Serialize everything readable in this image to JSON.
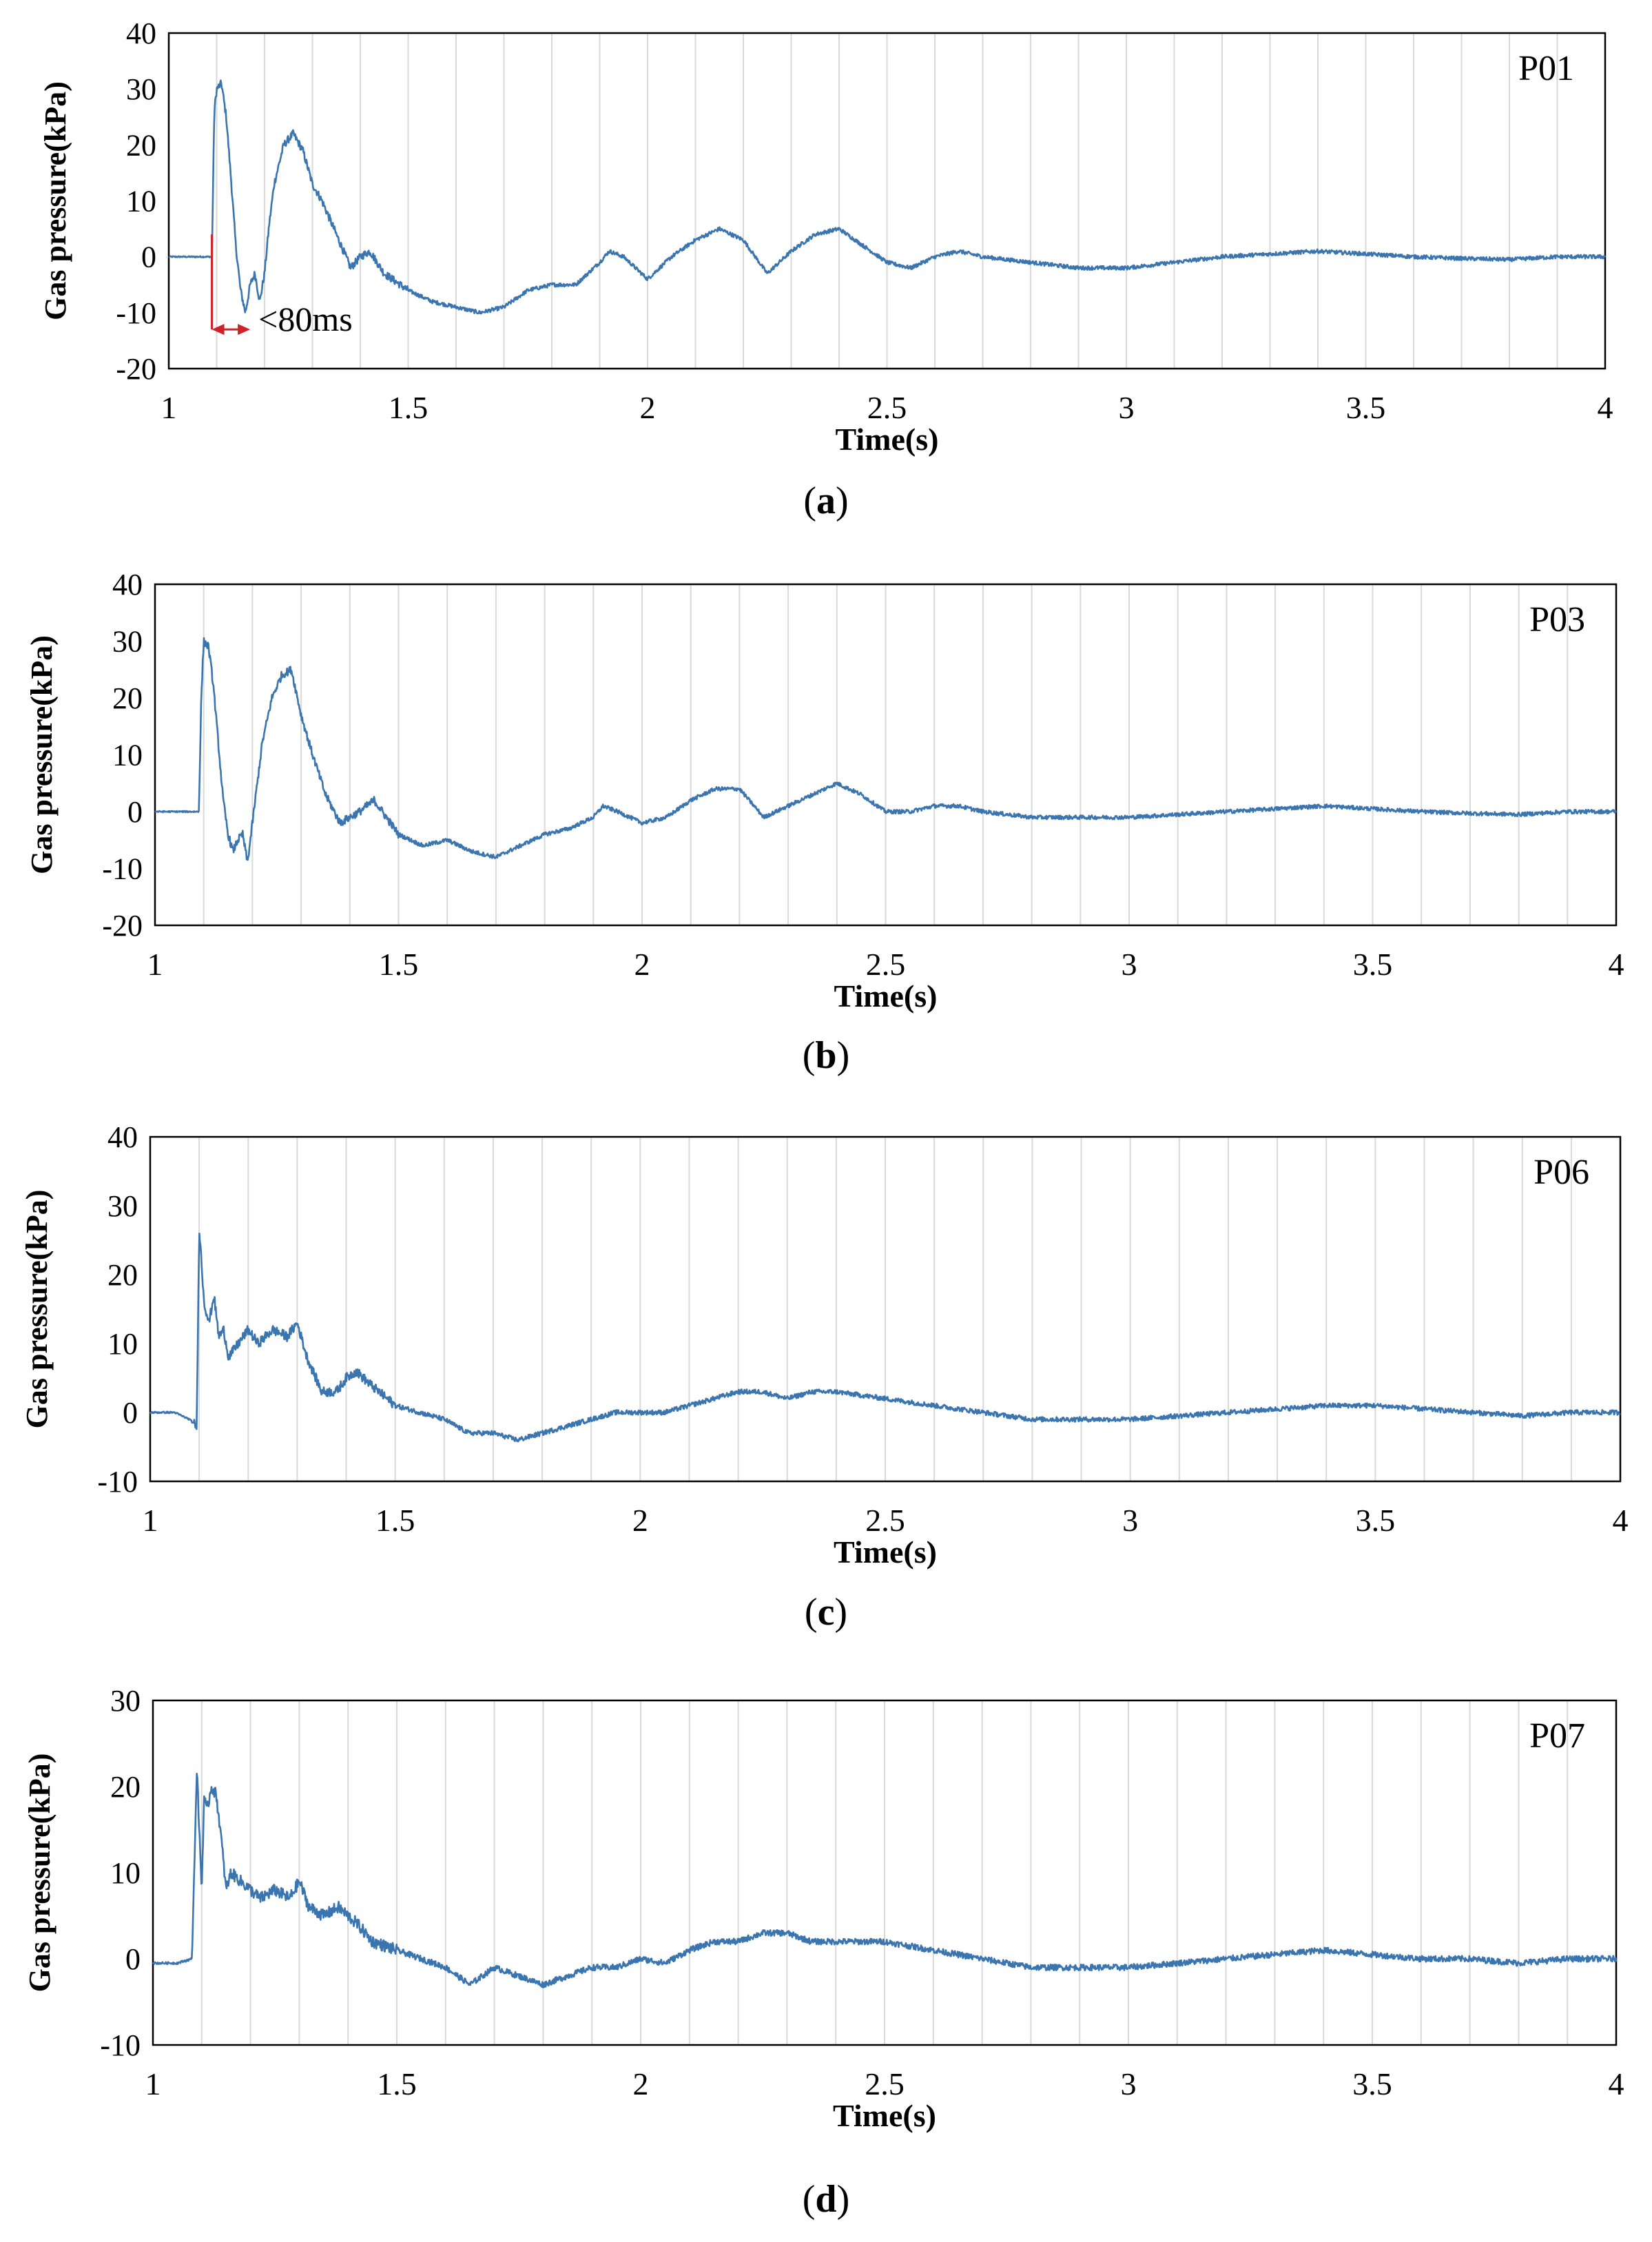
{
  "chart_data": [
    {
      "type": "line",
      "panel_label": "a",
      "title": "P01",
      "xlabel": "Time(s)",
      "ylabel": "Gas pressure(kPa)",
      "xlim": [
        1,
        4
      ],
      "ylim": [
        -20,
        40
      ],
      "xticks": [
        1,
        1.5,
        2,
        2.5,
        3,
        3.5,
        4
      ],
      "yticks": [
        -20,
        -10,
        0,
        10,
        20,
        30,
        40
      ],
      "grid": "vertical minor lines every 0.1 s",
      "annotation": {
        "text": "<80ms",
        "x_start": 1.09,
        "x_end": 1.17
      },
      "series": [
        {
          "name": "P01",
          "color": "#3b75b0",
          "x": [
            1.0,
            1.05,
            1.09,
            1.095,
            1.1,
            1.11,
            1.12,
            1.13,
            1.14,
            1.15,
            1.16,
            1.17,
            1.18,
            1.19,
            1.2,
            1.21,
            1.22,
            1.24,
            1.26,
            1.28,
            1.3,
            1.32,
            1.35,
            1.38,
            1.4,
            1.42,
            1.45,
            1.5,
            1.55,
            1.6,
            1.65,
            1.7,
            1.75,
            1.8,
            1.85,
            1.9,
            1.92,
            1.95,
            2.0,
            2.05,
            2.1,
            2.15,
            2.2,
            2.25,
            2.3,
            2.35,
            2.4,
            2.45,
            2.5,
            2.55,
            2.6,
            2.65,
            2.7,
            2.8,
            2.9,
            3.0,
            3.1,
            3.2,
            3.3,
            3.4,
            3.5,
            3.6,
            3.7,
            3.8,
            3.9,
            4.0
          ],
          "y": [
            0,
            0,
            0,
            26,
            30,
            31,
            25,
            14,
            2,
            -6,
            -10,
            -5,
            -3,
            -8,
            -3,
            6,
            13,
            20,
            22,
            19,
            13,
            10,
            4,
            -2,
            0,
            1,
            -3,
            -6,
            -8,
            -9,
            -10,
            -9,
            -6,
            -5,
            -5,
            -1,
            1,
            0,
            -4,
            0,
            3,
            5,
            3,
            -3,
            1,
            4,
            5,
            2,
            -1,
            -2,
            0,
            1,
            0,
            -1,
            -2,
            -2,
            -1,
            0,
            0.5,
            1,
            0.5,
            0,
            -0.3,
            -0.5,
            0,
            0
          ]
        }
      ]
    },
    {
      "type": "line",
      "panel_label": "b",
      "title": "P03",
      "xlabel": "Time(s)",
      "ylabel": "Gas pressure(kPa)",
      "xlim": [
        1,
        4
      ],
      "ylim": [
        -20,
        40
      ],
      "xticks": [
        1,
        1.5,
        2,
        2.5,
        3,
        3.5,
        4
      ],
      "yticks": [
        -20,
        -10,
        0,
        10,
        20,
        30,
        40
      ],
      "grid": "vertical minor lines every 0.1 s",
      "series": [
        {
          "name": "P03",
          "color": "#3b75b0",
          "x": [
            1.0,
            1.05,
            1.09,
            1.095,
            1.1,
            1.11,
            1.12,
            1.13,
            1.14,
            1.15,
            1.16,
            1.17,
            1.18,
            1.19,
            1.2,
            1.21,
            1.22,
            1.24,
            1.26,
            1.28,
            1.3,
            1.32,
            1.35,
            1.38,
            1.4,
            1.42,
            1.45,
            1.5,
            1.55,
            1.6,
            1.65,
            1.7,
            1.75,
            1.8,
            1.85,
            1.9,
            1.92,
            1.95,
            2.0,
            2.05,
            2.1,
            2.15,
            2.2,
            2.25,
            2.3,
            2.35,
            2.4,
            2.45,
            2.5,
            2.55,
            2.6,
            2.65,
            2.7,
            2.8,
            2.9,
            3.0,
            3.1,
            3.2,
            3.3,
            3.4,
            3.5,
            3.6,
            3.7,
            3.8,
            3.9,
            4.0
          ],
          "y": [
            0,
            0,
            0,
            20,
            30,
            29,
            22,
            12,
            2,
            -4,
            -7,
            -5,
            -4,
            -9,
            -2,
            5,
            12,
            20,
            24,
            25,
            17,
            11,
            3,
            -2,
            -1,
            0,
            2,
            -4,
            -6,
            -5,
            -7,
            -8,
            -6,
            -4,
            -3,
            -1,
            1,
            0,
            -2,
            -1,
            2,
            4,
            4,
            -1,
            1,
            3,
            5,
            3,
            0,
            0,
            1,
            1,
            0,
            -1,
            -1,
            -1,
            -0.5,
            0,
            0.5,
            1,
            0.5,
            0,
            -0.3,
            -0.5,
            0,
            0
          ]
        }
      ]
    },
    {
      "type": "line",
      "panel_label": "c",
      "title": "P06",
      "xlabel": "Time(s)",
      "ylabel": "Gas pressure(kPa)",
      "xlim": [
        1,
        4
      ],
      "ylim": [
        -10,
        40
      ],
      "xticks": [
        1,
        1.5,
        2,
        2.5,
        3,
        3.5,
        4
      ],
      "yticks": [
        -10,
        0,
        10,
        20,
        30,
        40
      ],
      "grid": "vertical minor lines every 0.1 s",
      "series": [
        {
          "name": "P06",
          "color": "#3b75b0",
          "x": [
            1.0,
            1.05,
            1.08,
            1.095,
            1.1,
            1.11,
            1.12,
            1.13,
            1.14,
            1.15,
            1.16,
            1.18,
            1.2,
            1.22,
            1.25,
            1.28,
            1.3,
            1.32,
            1.35,
            1.38,
            1.4,
            1.42,
            1.45,
            1.5,
            1.55,
            1.6,
            1.65,
            1.7,
            1.75,
            1.8,
            1.85,
            1.9,
            1.95,
            2.0,
            2.05,
            2.1,
            2.15,
            2.2,
            2.25,
            2.3,
            2.35,
            2.4,
            2.5,
            2.6,
            2.7,
            2.8,
            2.9,
            3.0,
            3.1,
            3.2,
            3.3,
            3.4,
            3.5,
            3.6,
            3.7,
            3.8,
            3.9,
            4.0
          ],
          "y": [
            0,
            0,
            -1,
            -2,
            27,
            16,
            13,
            17,
            11,
            12,
            8,
            10,
            12,
            10,
            12,
            11,
            13,
            8,
            3,
            3,
            5,
            6,
            4,
            1,
            0,
            -1,
            -3,
            -3,
            -4,
            -3,
            -2,
            -1,
            0,
            0,
            0,
            1,
            2,
            3,
            3,
            2,
            3,
            3,
            2,
            1,
            0,
            -1,
            -1,
            -1,
            -0.5,
            0,
            0.5,
            1,
            1,
            0.5,
            0,
            -0.5,
            0,
            0
          ]
        }
      ]
    },
    {
      "type": "line",
      "panel_label": "d",
      "title": "P07",
      "xlabel": "Time(s)",
      "ylabel": "Gas pressure(kPa)",
      "xlim": [
        1,
        4
      ],
      "ylim": [
        -10,
        30
      ],
      "xticks": [
        1,
        1.5,
        2,
        2.5,
        3,
        3.5,
        4
      ],
      "yticks": [
        -10,
        0,
        10,
        20,
        30
      ],
      "grid": "vertical minor lines every 0.1 s",
      "series": [
        {
          "name": "P07",
          "color": "#3b75b0",
          "x": [
            1.0,
            1.05,
            1.08,
            1.09,
            1.1,
            1.105,
            1.11,
            1.12,
            1.13,
            1.14,
            1.15,
            1.16,
            1.18,
            1.2,
            1.22,
            1.25,
            1.28,
            1.3,
            1.32,
            1.35,
            1.38,
            1.4,
            1.42,
            1.45,
            1.5,
            1.55,
            1.6,
            1.65,
            1.7,
            1.75,
            1.8,
            1.85,
            1.9,
            1.95,
            2.0,
            2.05,
            2.1,
            2.15,
            2.2,
            2.25,
            2.3,
            2.35,
            2.4,
            2.5,
            2.6,
            2.7,
            2.8,
            2.9,
            3.0,
            3.1,
            3.2,
            3.3,
            3.4,
            3.5,
            3.6,
            3.7,
            3.8,
            3.9,
            4.0
          ],
          "y": [
            -0.5,
            -0.5,
            0,
            22,
            8,
            19,
            17,
            20,
            19,
            14,
            8,
            10,
            9,
            8,
            7,
            8,
            7,
            9,
            6,
            5,
            6,
            5,
            4,
            2,
            1,
            0,
            -1,
            -3,
            -1,
            -2,
            -3,
            -2,
            -1,
            -1,
            0,
            -0.5,
            1,
            2,
            2,
            3,
            3,
            2,
            2,
            2,
            1,
            0,
            -1,
            -1,
            -1,
            -0.5,
            0,
            0.5,
            1,
            0.5,
            0,
            0,
            -0.5,
            0,
            0
          ]
        }
      ]
    }
  ]
}
